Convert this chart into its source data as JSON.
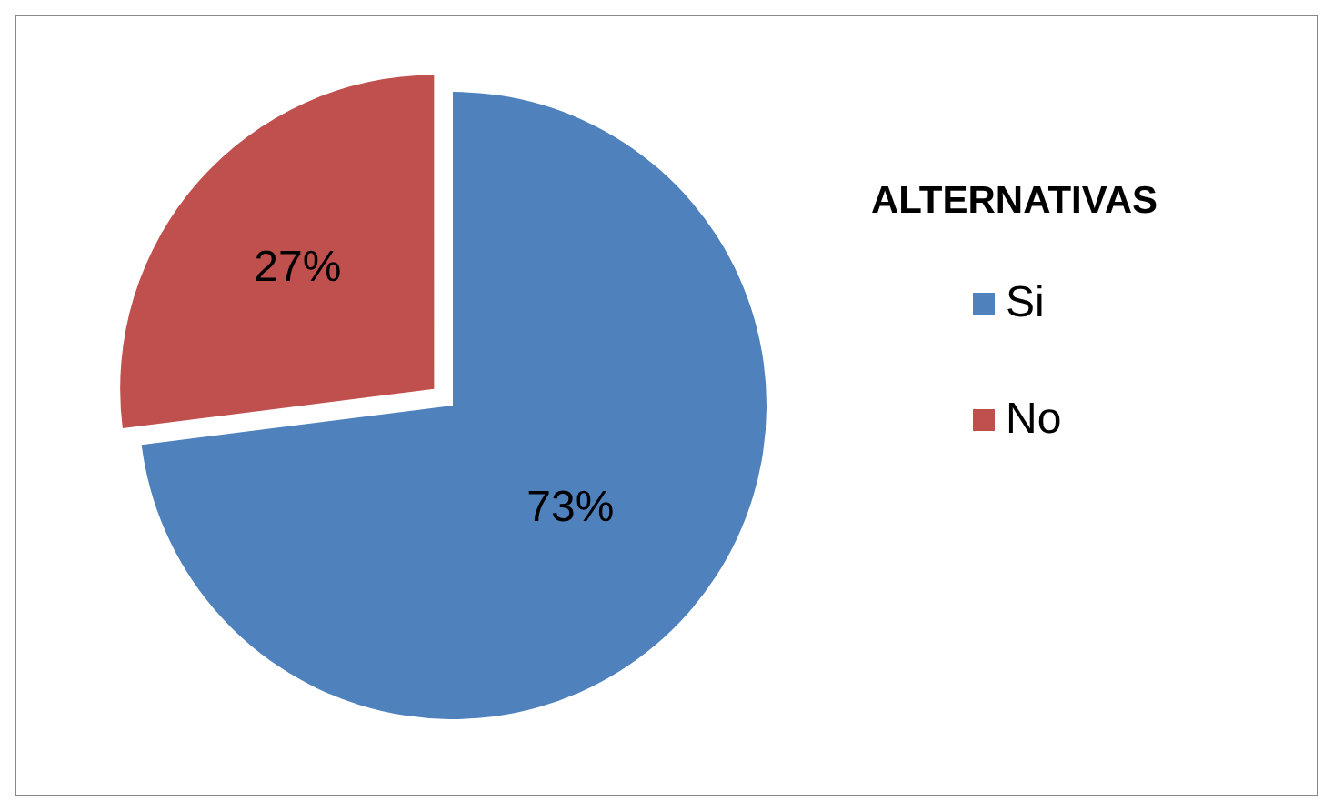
{
  "chart_data": {
    "type": "pie",
    "legend_title": "ALTERNATIVAS",
    "categories": [
      "Si",
      "No"
    ],
    "values": [
      73,
      27
    ],
    "colors": [
      "#4f81bd",
      "#c0504d"
    ],
    "value_labels": [
      "73%",
      "27%"
    ],
    "legend": "right"
  }
}
